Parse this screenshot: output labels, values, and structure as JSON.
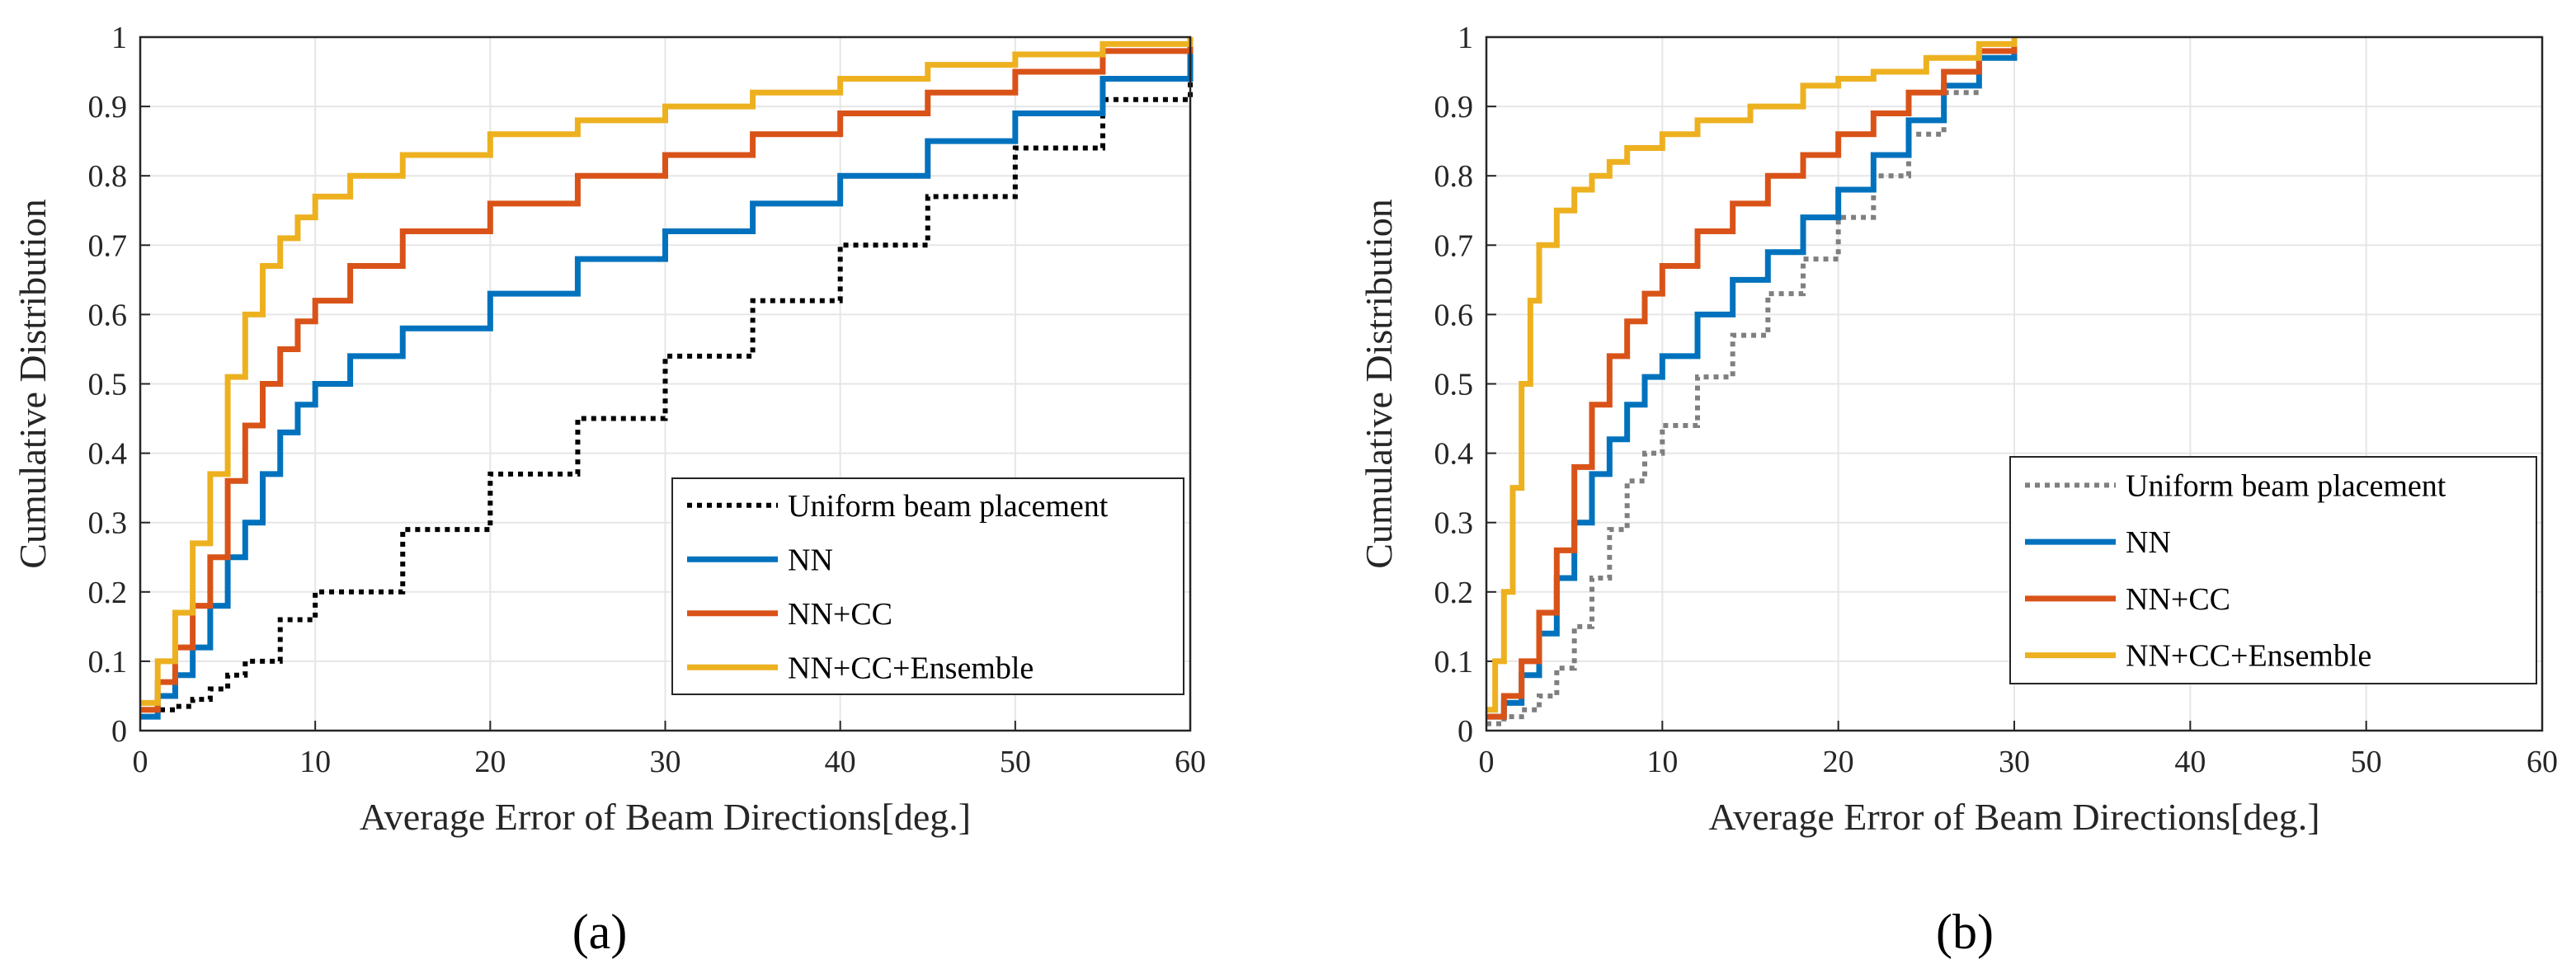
{
  "figure": {
    "captions": [
      "(a)",
      "(b)"
    ],
    "caption_letters": [
      "a",
      "b"
    ]
  },
  "chart_data": [
    {
      "type": "line",
      "panel": "a",
      "title": "",
      "xlabel": "Average Error of Beam Directions[deg.]",
      "ylabel": "Cumulative Distribution",
      "xlim": [
        0,
        60
      ],
      "ylim": [
        0,
        1
      ],
      "xticks": [
        "0",
        "10",
        "20",
        "30",
        "40",
        "50",
        "60"
      ],
      "yticks": [
        "0",
        "0.1",
        "0.2",
        "0.3",
        "0.4",
        "0.5",
        "0.6",
        "0.7",
        "0.8",
        "0.9",
        "1"
      ],
      "grid": true,
      "legend_position": "bottom-right",
      "series": [
        {
          "name": "Uniform beam placement",
          "color": "#000000",
          "style": "dotted",
          "x": [
            0,
            1,
            2,
            3,
            4,
            5,
            6,
            8,
            10,
            15,
            20,
            25,
            30,
            35,
            40,
            45,
            50,
            55,
            60
          ],
          "y": [
            0.03,
            0.03,
            0.035,
            0.045,
            0.06,
            0.08,
            0.1,
            0.16,
            0.2,
            0.29,
            0.37,
            0.45,
            0.54,
            0.62,
            0.7,
            0.77,
            0.84,
            0.91,
            0.98
          ]
        },
        {
          "name": "NN",
          "color": "#0072BD",
          "style": "solid",
          "x": [
            0,
            1,
            2,
            3,
            4,
            5,
            6,
            7,
            8,
            9,
            10,
            12,
            15,
            20,
            25,
            30,
            35,
            40,
            45,
            50,
            55,
            60
          ],
          "y": [
            0.02,
            0.05,
            0.08,
            0.12,
            0.18,
            0.25,
            0.3,
            0.37,
            0.43,
            0.47,
            0.5,
            0.54,
            0.58,
            0.63,
            0.68,
            0.72,
            0.76,
            0.8,
            0.85,
            0.89,
            0.94,
            0.98
          ]
        },
        {
          "name": "NN+CC",
          "color": "#D95319",
          "style": "solid",
          "x": [
            0,
            1,
            2,
            3,
            4,
            5,
            6,
            7,
            8,
            9,
            10,
            12,
            15,
            20,
            25,
            30,
            35,
            40,
            45,
            50,
            55,
            60
          ],
          "y": [
            0.03,
            0.07,
            0.12,
            0.18,
            0.25,
            0.36,
            0.44,
            0.5,
            0.55,
            0.59,
            0.62,
            0.67,
            0.72,
            0.76,
            0.8,
            0.83,
            0.86,
            0.89,
            0.92,
            0.95,
            0.98,
            0.995
          ]
        },
        {
          "name": "NN+CC+Ensemble",
          "color": "#EDB120",
          "style": "solid",
          "x": [
            0,
            1,
            2,
            3,
            4,
            5,
            6,
            7,
            8,
            9,
            10,
            12,
            15,
            20,
            25,
            30,
            35,
            40,
            45,
            50,
            55,
            60
          ],
          "y": [
            0.04,
            0.1,
            0.17,
            0.27,
            0.37,
            0.51,
            0.6,
            0.67,
            0.71,
            0.74,
            0.77,
            0.8,
            0.83,
            0.86,
            0.88,
            0.9,
            0.92,
            0.94,
            0.96,
            0.975,
            0.99,
            1.0
          ]
        }
      ]
    },
    {
      "type": "line",
      "panel": "b",
      "title": "",
      "xlabel": "Average Error of Beam Directions[deg.]",
      "ylabel": "Cumulative Distribution",
      "xlim": [
        0,
        60
      ],
      "ylim": [
        0,
        1
      ],
      "xticks": [
        "0",
        "10",
        "20",
        "30",
        "40",
        "50",
        "60"
      ],
      "yticks": [
        "0",
        "0.1",
        "0.2",
        "0.3",
        "0.4",
        "0.5",
        "0.6",
        "0.7",
        "0.8",
        "0.9",
        "1"
      ],
      "grid": true,
      "legend_position": "bottom-right",
      "series": [
        {
          "name": "Uniform beam placement",
          "color": "#7F7F7F",
          "style": "dotted",
          "x": [
            0,
            1,
            2,
            3,
            4,
            5,
            6,
            7,
            8,
            9,
            10,
            12,
            14,
            16,
            18,
            20,
            22,
            24,
            26,
            28,
            30
          ],
          "y": [
            0.01,
            0.02,
            0.03,
            0.05,
            0.09,
            0.15,
            0.22,
            0.29,
            0.36,
            0.4,
            0.44,
            0.51,
            0.57,
            0.63,
            0.68,
            0.74,
            0.8,
            0.86,
            0.92,
            0.97,
            0.995
          ]
        },
        {
          "name": "NN",
          "color": "#0072BD",
          "style": "solid",
          "x": [
            0,
            1,
            2,
            3,
            4,
            5,
            6,
            7,
            8,
            9,
            10,
            12,
            14,
            16,
            18,
            20,
            22,
            24,
            26,
            28,
            30
          ],
          "y": [
            0.02,
            0.04,
            0.08,
            0.14,
            0.22,
            0.3,
            0.37,
            0.42,
            0.47,
            0.51,
            0.54,
            0.6,
            0.65,
            0.69,
            0.74,
            0.78,
            0.83,
            0.88,
            0.93,
            0.97,
            0.995
          ]
        },
        {
          "name": "NN+CC",
          "color": "#D95319",
          "style": "solid",
          "x": [
            0,
            1,
            2,
            3,
            4,
            5,
            6,
            7,
            8,
            9,
            10,
            12,
            14,
            16,
            18,
            20,
            22,
            24,
            26,
            28,
            30
          ],
          "y": [
            0.02,
            0.05,
            0.1,
            0.17,
            0.26,
            0.38,
            0.47,
            0.54,
            0.59,
            0.63,
            0.67,
            0.72,
            0.76,
            0.8,
            0.83,
            0.86,
            0.89,
            0.92,
            0.95,
            0.98,
            0.995
          ]
        },
        {
          "name": "NN+CC+Ensemble",
          "color": "#EDB120",
          "style": "solid",
          "x": [
            0,
            0.5,
            1,
            1.5,
            2,
            2.5,
            3,
            4,
            5,
            6,
            7,
            8,
            10,
            12,
            15,
            18,
            20,
            22,
            25,
            28,
            30
          ],
          "y": [
            0.03,
            0.1,
            0.2,
            0.35,
            0.5,
            0.62,
            0.7,
            0.75,
            0.78,
            0.8,
            0.82,
            0.84,
            0.86,
            0.88,
            0.9,
            0.93,
            0.94,
            0.95,
            0.97,
            0.99,
            1.0
          ]
        }
      ]
    }
  ]
}
